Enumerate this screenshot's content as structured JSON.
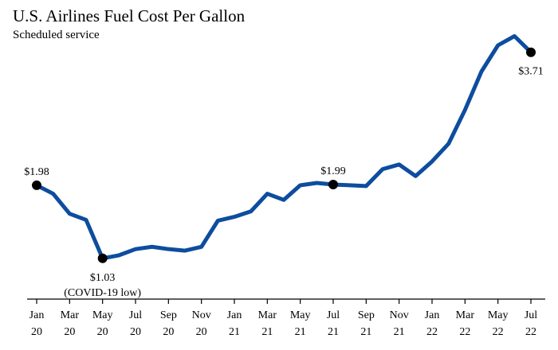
{
  "chart_data": {
    "type": "line",
    "title": "U.S. Airlines Fuel Cost Per Gallon",
    "subtitle": "Scheduled service",
    "xlabel": "",
    "ylabel": "",
    "ylim": [
      0.5,
      4.1
    ],
    "grid": false,
    "line_color": "#0d4d9e",
    "tick_labels": [
      [
        "Jan",
        "20"
      ],
      [
        "Mar",
        "20"
      ],
      [
        "May",
        "20"
      ],
      [
        "Jul",
        "20"
      ],
      [
        "Sep",
        "20"
      ],
      [
        "Nov",
        "20"
      ],
      [
        "Jan",
        "21"
      ],
      [
        "Mar",
        "21"
      ],
      [
        "May",
        "21"
      ],
      [
        "Jul",
        "21"
      ],
      [
        "Sep",
        "21"
      ],
      [
        "Nov",
        "21"
      ],
      [
        "Jan",
        "22"
      ],
      [
        "Mar",
        "22"
      ],
      [
        "May",
        "22"
      ],
      [
        "Jul",
        "22"
      ]
    ],
    "series": [
      {
        "name": "Fuel cost per gallon",
        "months": [
          "Jan 20",
          "Feb 20",
          "Mar 20",
          "Apr 20",
          "May 20",
          "Jun 20",
          "Jul 20",
          "Aug 20",
          "Sep 20",
          "Oct 20",
          "Nov 20",
          "Dec 20",
          "Jan 21",
          "Feb 21",
          "Mar 21",
          "Apr 21",
          "May 21",
          "Jun 21",
          "Jul 21",
          "Aug 21",
          "Sep 21",
          "Oct 21",
          "Nov 21",
          "Dec 21",
          "Jan 22",
          "Feb 22",
          "Mar 22",
          "Apr 22",
          "May 22",
          "Jun 22",
          "Jul 22"
        ],
        "values": [
          1.98,
          1.87,
          1.61,
          1.53,
          1.03,
          1.07,
          1.15,
          1.18,
          1.15,
          1.13,
          1.18,
          1.52,
          1.57,
          1.64,
          1.87,
          1.79,
          1.98,
          2.01,
          1.99,
          1.98,
          1.97,
          2.19,
          2.25,
          2.1,
          2.29,
          2.52,
          2.96,
          3.46,
          3.8,
          3.92,
          3.71
        ]
      }
    ],
    "annotations": [
      {
        "index": 0,
        "label": "$1.98",
        "sublabel": "",
        "position": "above"
      },
      {
        "index": 4,
        "label": "$1.03",
        "sublabel": "(COVID-19 low)",
        "position": "below"
      },
      {
        "index": 18,
        "label": "$1.99",
        "sublabel": "",
        "position": "above"
      },
      {
        "index": 30,
        "label": "$3.71",
        "sublabel": "",
        "position": "below"
      }
    ]
  }
}
